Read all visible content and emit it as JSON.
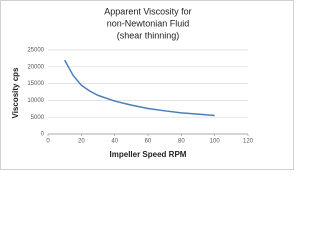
{
  "chart_data": {
    "type": "line",
    "title": [
      "Apparent Viscosity for",
      "non-Newtonian Fluid",
      "(shear thinning)"
    ],
    "x_label": "Impeller Speed RPM",
    "y_label": "Viscosity cps",
    "x": [
      10,
      15,
      20,
      25,
      30,
      40,
      50,
      60,
      70,
      80,
      90,
      100
    ],
    "series": [
      {
        "name": "Viscosity",
        "color": "#4a7ebb",
        "values": [
          22000,
          17500,
          14500,
          12800,
          11500,
          9800,
          8600,
          7600,
          6900,
          6300,
          5900,
          5500
        ]
      }
    ],
    "xlim": [
      0,
      120
    ],
    "xticks": [
      0,
      20,
      40,
      60,
      80,
      100,
      120
    ],
    "ylim": [
      0,
      25000
    ],
    "yticks": [
      0,
      5000,
      10000,
      15000,
      20000,
      25000
    ],
    "grid": true
  }
}
